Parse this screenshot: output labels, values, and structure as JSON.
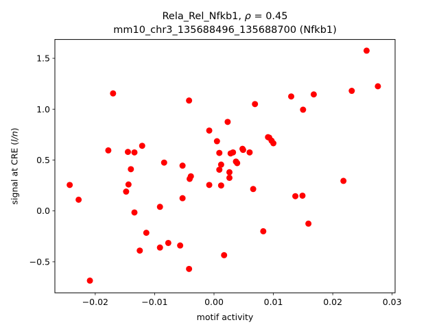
{
  "chart_data": {
    "type": "scatter",
    "title_line1_prefix": "Rela_Rel_Nfkb1, ",
    "title_rho_symbol": "ρ",
    "title_rho_rest": " = 0.45",
    "title_line2": "mm10_chr3_135688496_135688700 (Nfkb1)",
    "xlabel": "motif activity",
    "ylabel": "signal at CRE (",
    "ylabel_italic": "l/n",
    "ylabel_suffix": ")",
    "xlim": [
      -0.0268,
      0.0305
    ],
    "ylim": [
      -0.805,
      1.685
    ],
    "xticks": [
      {
        "value": -0.02,
        "label": "−0.02"
      },
      {
        "value": -0.01,
        "label": "−0.01"
      },
      {
        "value": 0.0,
        "label": "0.00"
      },
      {
        "value": 0.01,
        "label": "0.01"
      },
      {
        "value": 0.02,
        "label": "0.02"
      },
      {
        "value": 0.03,
        "label": "0.03"
      }
    ],
    "yticks": [
      {
        "value": -0.5,
        "label": "−0.5"
      },
      {
        "value": 0.0,
        "label": "0.0"
      },
      {
        "value": 0.5,
        "label": "0.5"
      },
      {
        "value": 1.0,
        "label": "1.0"
      },
      {
        "value": 1.5,
        "label": "1.5"
      }
    ],
    "grid": false,
    "marker_color": "#ff0000",
    "points": [
      {
        "x": -0.0243,
        "y": 0.255
      },
      {
        "x": -0.0228,
        "y": 0.11
      },
      {
        "x": -0.0209,
        "y": -0.685
      },
      {
        "x": -0.0178,
        "y": 0.595
      },
      {
        "x": -0.017,
        "y": 1.155
      },
      {
        "x": -0.0148,
        "y": 0.19
      },
      {
        "x": -0.0145,
        "y": 0.58
      },
      {
        "x": -0.0144,
        "y": 0.26
      },
      {
        "x": -0.014,
        "y": 0.41
      },
      {
        "x": -0.0134,
        "y": 0.575
      },
      {
        "x": -0.0134,
        "y": -0.015
      },
      {
        "x": -0.0125,
        "y": -0.39
      },
      {
        "x": -0.0121,
        "y": 0.64
      },
      {
        "x": -0.0114,
        "y": -0.215
      },
      {
        "x": -0.0091,
        "y": 0.04
      },
      {
        "x": -0.0091,
        "y": -0.36
      },
      {
        "x": -0.0084,
        "y": 0.475
      },
      {
        "x": -0.0077,
        "y": -0.315
      },
      {
        "x": -0.0057,
        "y": -0.34
      },
      {
        "x": -0.0053,
        "y": 0.445
      },
      {
        "x": -0.0053,
        "y": 0.125
      },
      {
        "x": -0.0042,
        "y": 1.085
      },
      {
        "x": -0.0042,
        "y": -0.57
      },
      {
        "x": -0.0041,
        "y": 0.315
      },
      {
        "x": -0.0039,
        "y": 0.34
      },
      {
        "x": -0.0008,
        "y": 0.79
      },
      {
        "x": -0.0008,
        "y": 0.255
      },
      {
        "x": 0.0005,
        "y": 0.685
      },
      {
        "x": 0.0009,
        "y": 0.57
      },
      {
        "x": 0.0009,
        "y": 0.405
      },
      {
        "x": 0.0012,
        "y": 0.455
      },
      {
        "x": 0.0012,
        "y": 0.25
      },
      {
        "x": 0.0017,
        "y": -0.435
      },
      {
        "x": 0.0023,
        "y": 0.875
      },
      {
        "x": 0.0026,
        "y": 0.38
      },
      {
        "x": 0.0026,
        "y": 0.325
      },
      {
        "x": 0.0028,
        "y": 0.565
      },
      {
        "x": 0.0032,
        "y": 0.575
      },
      {
        "x": 0.0037,
        "y": 0.485
      },
      {
        "x": 0.0039,
        "y": 0.47
      },
      {
        "x": 0.0048,
        "y": 0.61
      },
      {
        "x": 0.0049,
        "y": 0.6
      },
      {
        "x": 0.006,
        "y": 0.575
      },
      {
        "x": 0.0066,
        "y": 0.215
      },
      {
        "x": 0.0069,
        "y": 1.05
      },
      {
        "x": 0.0083,
        "y": -0.2
      },
      {
        "x": 0.0091,
        "y": 0.725
      },
      {
        "x": 0.0093,
        "y": 0.72
      },
      {
        "x": 0.0097,
        "y": 0.69
      },
      {
        "x": 0.01,
        "y": 0.665
      },
      {
        "x": 0.013,
        "y": 1.125
      },
      {
        "x": 0.0137,
        "y": 0.145
      },
      {
        "x": 0.0149,
        "y": 0.15
      },
      {
        "x": 0.015,
        "y": 0.995
      },
      {
        "x": 0.0159,
        "y": -0.125
      },
      {
        "x": 0.0168,
        "y": 1.145
      },
      {
        "x": 0.0218,
        "y": 0.295
      },
      {
        "x": 0.0232,
        "y": 1.18
      },
      {
        "x": 0.0257,
        "y": 1.575
      },
      {
        "x": 0.0276,
        "y": 1.225
      }
    ]
  }
}
